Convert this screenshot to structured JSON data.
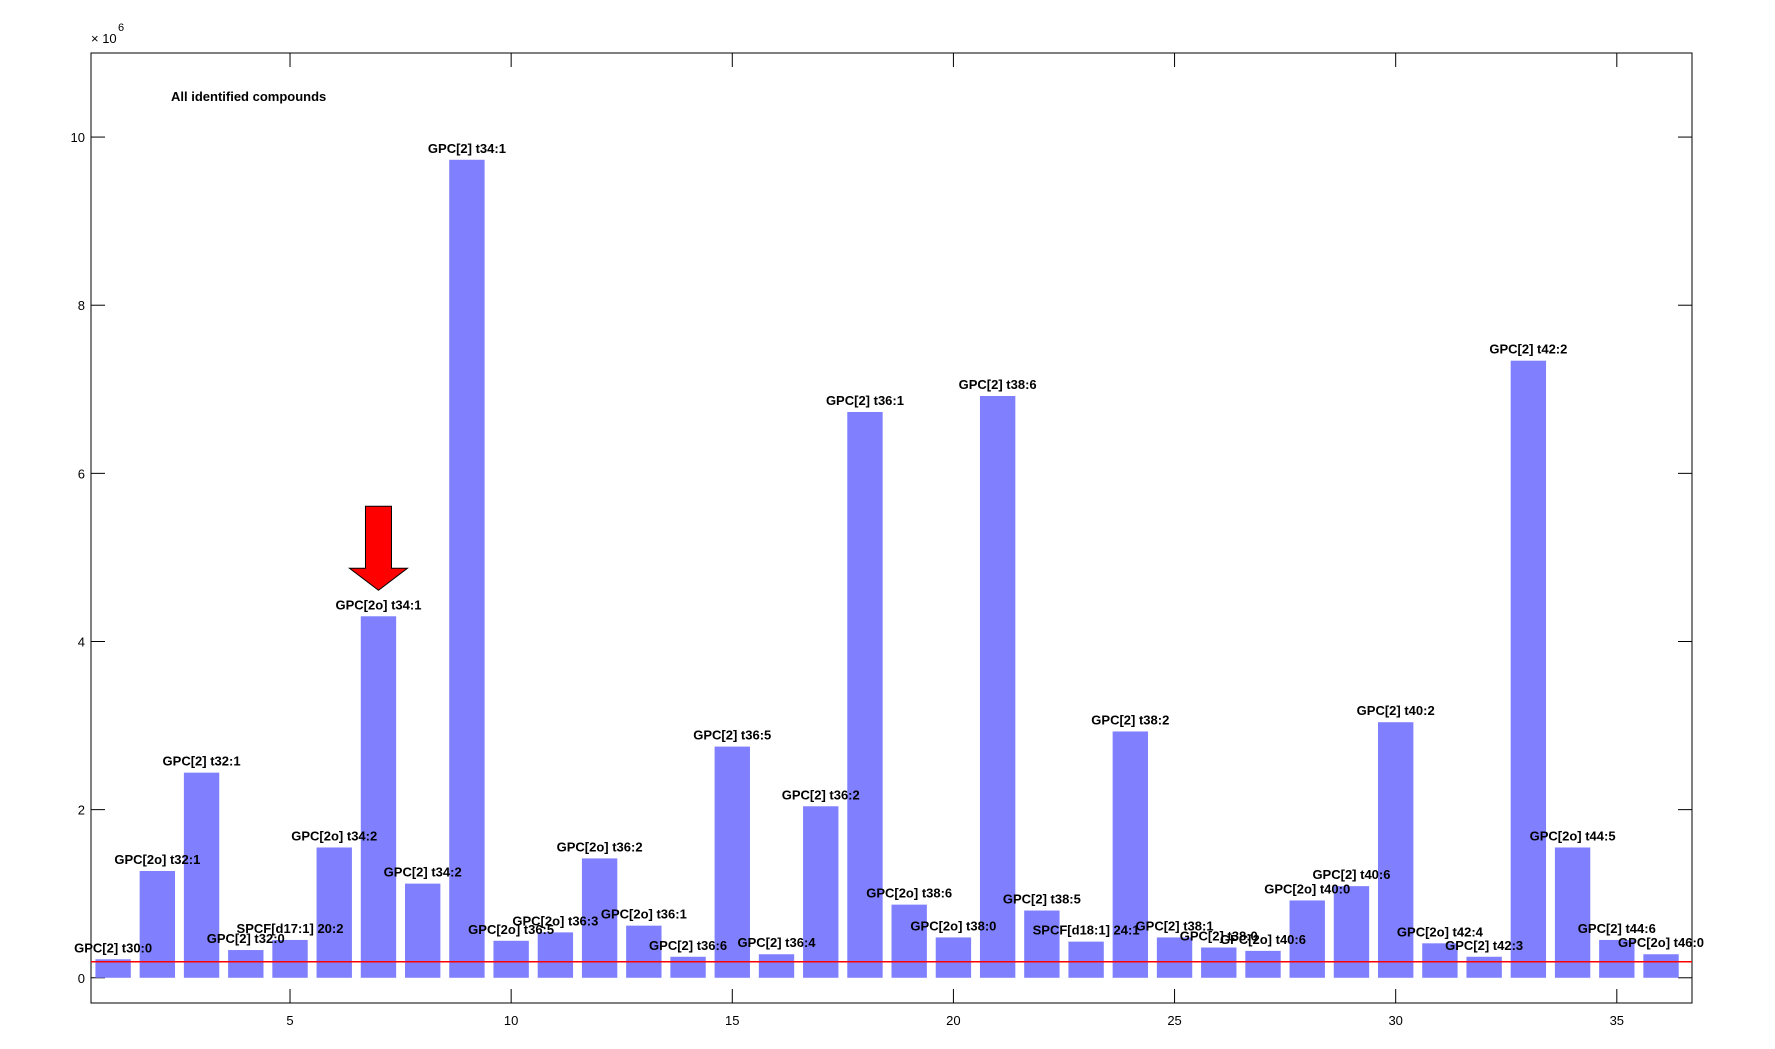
{
  "chart_data": {
    "type": "bar",
    "annotation_title": "All identified compounds",
    "y_multiplier_base": "× 10",
    "y_multiplier_exp": "6",
    "xlim": [
      0.5,
      36.7
    ],
    "ylim": [
      -0.3,
      11.0
    ],
    "x_ticks": [
      5,
      10,
      15,
      20,
      25,
      30,
      35
    ],
    "y_ticks": [
      0,
      2,
      4,
      6,
      8,
      10
    ],
    "threshold": 0.19,
    "highlight_index": 7,
    "colors": {
      "bar": "#8080ff",
      "threshold_line": "#ff0000",
      "arrow": "#ff0000",
      "axis": "#000000"
    },
    "bars": [
      {
        "x": 1,
        "value": 0.22,
        "label": "GPC[2] t30:0"
      },
      {
        "x": 2,
        "value": 1.27,
        "label": "GPC[2o] t32:1"
      },
      {
        "x": 3,
        "value": 2.44,
        "label": "GPC[2] t32:1"
      },
      {
        "x": 4,
        "value": 0.33,
        "label": "GPC[2] t32:0"
      },
      {
        "x": 5,
        "value": 0.45,
        "label": "SPCF[d17:1] 20:2"
      },
      {
        "x": 6,
        "value": 1.55,
        "label": "GPC[2o] t34:2"
      },
      {
        "x": 7,
        "value": 4.3,
        "label": "GPC[2o] t34:1"
      },
      {
        "x": 8,
        "value": 1.12,
        "label": "GPC[2] t34:2"
      },
      {
        "x": 9,
        "value": 9.73,
        "label": "GPC[2] t34:1"
      },
      {
        "x": 10,
        "value": 0.44,
        "label": "GPC[2o] t36:5"
      },
      {
        "x": 11,
        "value": 0.54,
        "label": "GPC[2o] t36:3"
      },
      {
        "x": 12,
        "value": 1.42,
        "label": "GPC[2o] t36:2"
      },
      {
        "x": 13,
        "value": 0.62,
        "label": "GPC[2o] t36:1"
      },
      {
        "x": 14,
        "value": 0.25,
        "label": "GPC[2] t36:6"
      },
      {
        "x": 15,
        "value": 2.75,
        "label": "GPC[2] t36:5"
      },
      {
        "x": 16,
        "value": 0.28,
        "label": "GPC[2] t36:4"
      },
      {
        "x": 17,
        "value": 2.04,
        "label": "GPC[2] t36:2"
      },
      {
        "x": 18,
        "value": 6.73,
        "label": "GPC[2] t36:1"
      },
      {
        "x": 19,
        "value": 0.87,
        "label": "GPC[2o] t38:6"
      },
      {
        "x": 20,
        "value": 0.48,
        "label": "GPC[2o] t38:0"
      },
      {
        "x": 21,
        "value": 6.92,
        "label": "GPC[2] t38:6"
      },
      {
        "x": 22,
        "value": 0.8,
        "label": "GPC[2] t38:5"
      },
      {
        "x": 23,
        "value": 0.43,
        "label": "SPCF[d18:1] 24:1"
      },
      {
        "x": 24,
        "value": 2.93,
        "label": "GPC[2] t38:2"
      },
      {
        "x": 25,
        "value": 0.48,
        "label": "GPC[2] t38:1"
      },
      {
        "x": 26,
        "value": 0.36,
        "label": "GPC[2] t38:0"
      },
      {
        "x": 27,
        "value": 0.32,
        "label": "GPC[2o] t40:6"
      },
      {
        "x": 28,
        "value": 0.92,
        "label": "GPC[2o] t40:0"
      },
      {
        "x": 29,
        "value": 1.09,
        "label": "GPC[2] t40:6"
      },
      {
        "x": 30,
        "value": 3.04,
        "label": "GPC[2] t40:2"
      },
      {
        "x": 31,
        "value": 0.41,
        "label": "GPC[2o] t42:4"
      },
      {
        "x": 32,
        "value": 0.25,
        "label": "GPC[2] t42:3"
      },
      {
        "x": 33,
        "value": 7.34,
        "label": "GPC[2] t42:2"
      },
      {
        "x": 34,
        "value": 1.55,
        "label": "GPC[2o] t44:5"
      },
      {
        "x": 35,
        "value": 0.45,
        "label": "GPC[2] t44:6"
      },
      {
        "x": 36,
        "value": 0.28,
        "label": "GPC[2o] t46:0"
      }
    ]
  }
}
